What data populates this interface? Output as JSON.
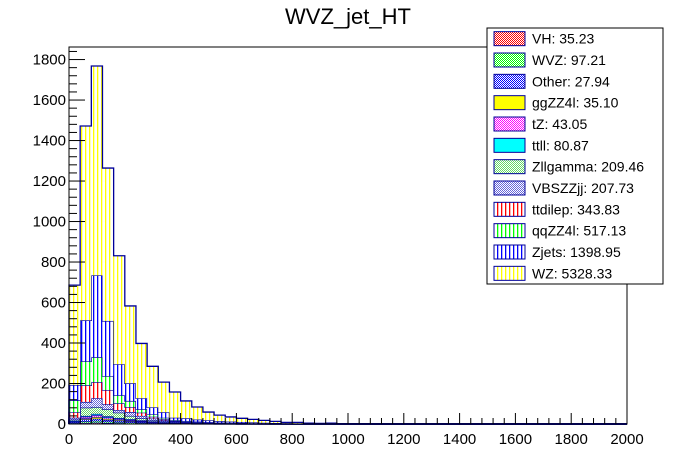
{
  "window": {
    "title": "WVZ_jet_HT"
  },
  "chart_data": {
    "type": "bar",
    "subtype": "stacked-histogram",
    "title": "WVZ_jet_HT",
    "xlabel": "",
    "ylabel": "",
    "xlim": [
      0,
      2000
    ],
    "ylim": [
      0,
      1862
    ],
    "bin_width": 40,
    "x_ticks": [
      "0",
      "200",
      "400",
      "600",
      "800",
      "1000",
      "1200",
      "1400",
      "1600",
      "1800",
      "2000"
    ],
    "y_ticks": [
      "0",
      "200",
      "400",
      "600",
      "800",
      "1000",
      "1200",
      "1400",
      "1600",
      "1800"
    ],
    "grid": false,
    "legend_position": "top-right",
    "series": [
      {
        "name": "VH",
        "label": "VH: 35.23",
        "color": "#ff0000",
        "pattern": "checker",
        "values": [
          3,
          6,
          7,
          5,
          4,
          3,
          2,
          2,
          1,
          1,
          1
        ]
      },
      {
        "name": "WVZ",
        "label": "WVZ: 97.21",
        "color": "#00ff00",
        "pattern": "checker",
        "values": [
          3,
          8,
          9,
          7,
          6,
          5,
          4,
          2,
          2,
          1,
          1,
          1,
          1
        ]
      },
      {
        "name": "Other",
        "label": "Other: 27.94",
        "color": "#0000ff",
        "pattern": "checker",
        "values": [
          4,
          9,
          10,
          8,
          6,
          5,
          4,
          3,
          2,
          1,
          0,
          1,
          0,
          1,
          1
        ]
      },
      {
        "name": "ggZZ4l",
        "label": "ggZZ4l: 35.10",
        "color": "#ffff00",
        "pattern": "solid",
        "values": [
          1,
          5,
          9,
          6,
          5,
          4,
          2,
          2,
          1,
          1,
          1,
          0,
          1
        ]
      },
      {
        "name": "tZ",
        "label": "tZ: 43.05",
        "color": "#ff00ff",
        "pattern": "checker",
        "values": [
          2,
          8,
          9,
          7,
          5,
          4,
          3,
          2,
          2,
          1,
          1,
          1,
          0,
          1,
          0,
          1,
          1
        ]
      },
      {
        "name": "ttll",
        "label": "ttll: 80.87",
        "color": "#00ffff",
        "pattern": "solid",
        "values": [
          3,
          4,
          6,
          5,
          4,
          3,
          3,
          2,
          1,
          1,
          1,
          1,
          1,
          0,
          1,
          0,
          0,
          1
        ]
      },
      {
        "name": "Zllgamma",
        "label": "Zllgamma: 209.46",
        "color": "#33cc33",
        "pattern": "checker-light",
        "values": [
          6,
          41,
          34,
          35,
          26,
          16,
          10,
          6,
          4,
          3,
          2,
          1,
          1,
          1,
          0,
          1,
          0,
          0,
          1
        ]
      },
      {
        "name": "VBSZZjj",
        "label": "VBSZZjj: 207.73",
        "color": "#3333cc",
        "pattern": "checker-light",
        "values": [
          9,
          28,
          43,
          24,
          13,
          19,
          12,
          8,
          5,
          3,
          2,
          2,
          1,
          1,
          1,
          0,
          1,
          0,
          0,
          1
        ]
      },
      {
        "name": "ttdilep",
        "label": "ttdilep: 343.83",
        "color": "#ff0000",
        "pattern": "vlines",
        "values": [
          27,
          82,
          80,
          71,
          33,
          25,
          16,
          9,
          6,
          3,
          2,
          2,
          2,
          1,
          1,
          1,
          1,
          1,
          1,
          0,
          1,
          1
        ]
      },
      {
        "name": "qqZZ4l",
        "label": "qqZZ4l: 517.13",
        "color": "#00ff00",
        "pattern": "vlines",
        "values": [
          59,
          119,
          123,
          69,
          40,
          30,
          17,
          12,
          7,
          5,
          4,
          3,
          2,
          2,
          2,
          2,
          1,
          1,
          1,
          1,
          1,
          0,
          1,
          1
        ]
      },
      {
        "name": "Zjets",
        "label": "Zjets: 1398.95",
        "color": "#0000ff",
        "pattern": "vlines",
        "values": [
          76,
          202,
          404,
          272,
          153,
          87,
          54,
          34,
          27,
          11,
          13,
          10,
          9,
          7,
          6,
          5,
          4,
          3,
          2,
          2,
          1,
          1,
          1,
          0,
          1,
          1,
          1
        ]
      },
      {
        "name": "WZ",
        "label": "WZ: 5328.33",
        "color": "#ffff00",
        "pattern": "vlines",
        "values": [
          493,
          960,
          1034,
          755,
          536,
          382,
          271,
          203,
          149,
          127,
          86,
          62,
          41,
          30,
          23,
          18,
          15,
          12,
          8,
          4,
          5,
          2,
          1,
          3,
          1,
          1,
          1,
          1
        ]
      }
    ],
    "outline_color": "#000099"
  }
}
